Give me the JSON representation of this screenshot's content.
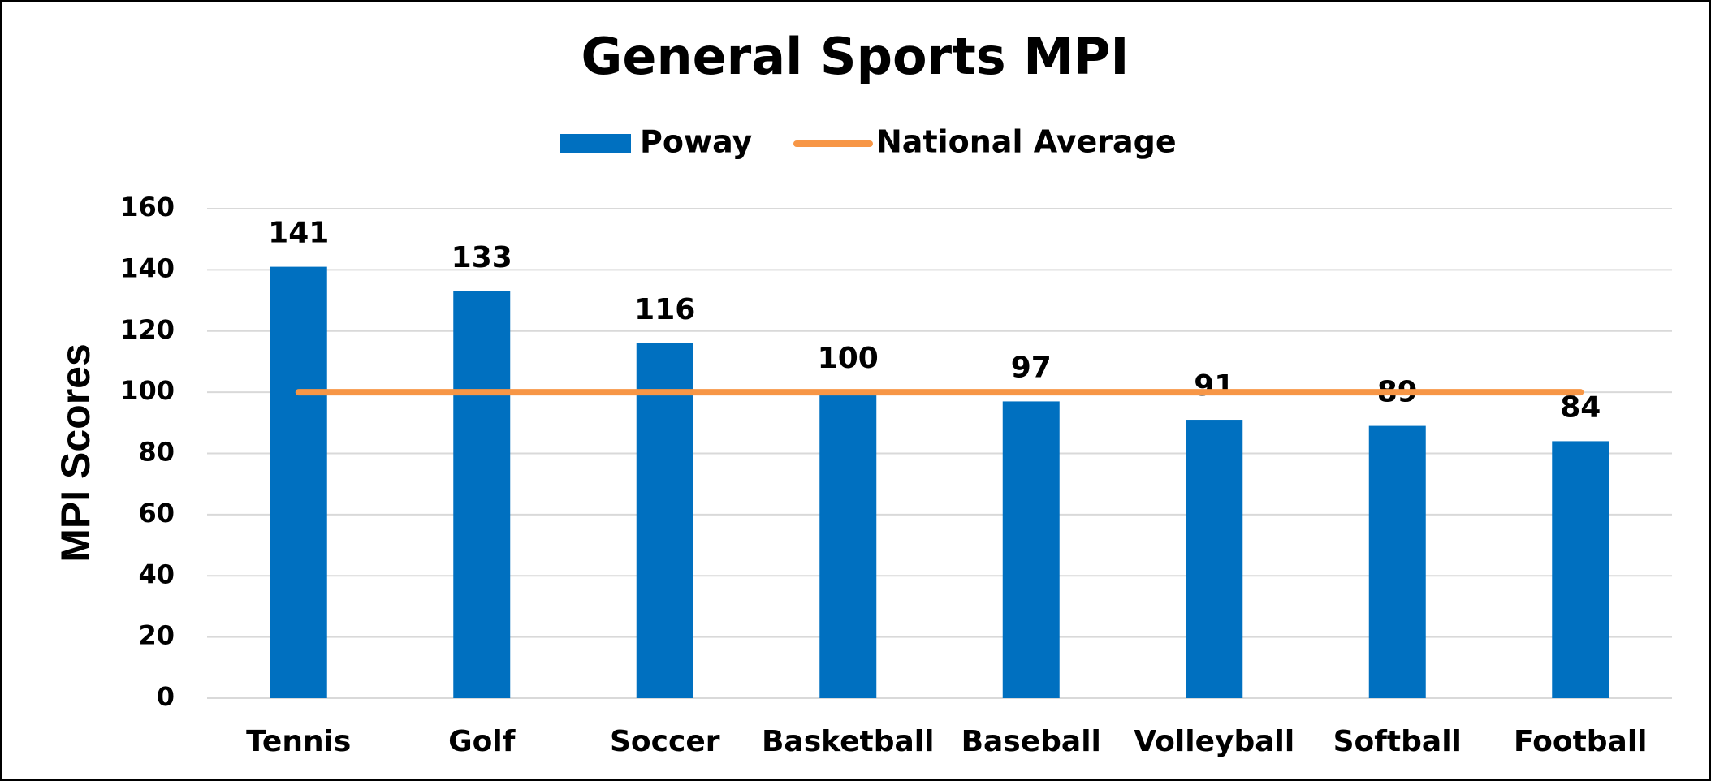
{
  "chart_data": {
    "type": "bar",
    "title": "General Sports MPI",
    "y_label": "MPI Scores",
    "categories": [
      "Tennis",
      "Golf",
      "Soccer",
      "Basketball",
      "Baseball",
      "Volleyball",
      "Softball",
      "Football"
    ],
    "series": [
      {
        "name": "Poway",
        "color": "#0070c0",
        "values": [
          141,
          133,
          116,
          100,
          97,
          91,
          89,
          84
        ]
      },
      {
        "name": "National Average",
        "color": "#f79646",
        "type": "line",
        "values": [
          100,
          100,
          100,
          100,
          100,
          100,
          100,
          100
        ]
      }
    ],
    "ylim": [
      0,
      160
    ],
    "yticks": [
      0,
      20,
      40,
      60,
      80,
      100,
      120,
      140,
      160
    ],
    "grid": true,
    "legend": "top"
  }
}
